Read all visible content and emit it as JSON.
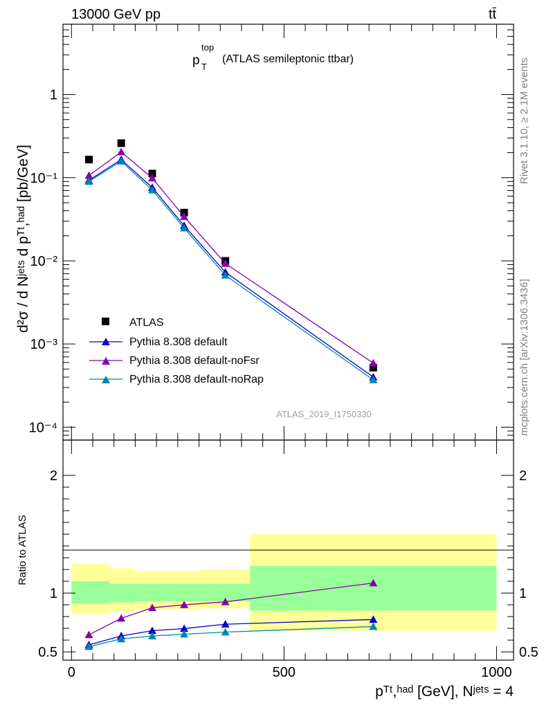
{
  "header": {
    "energy_label": "13000 GeV pp",
    "process_label": "tt̄",
    "title_main": "p",
    "title_sup": "top",
    "title_sub": "T",
    "title_rest": "(ATLAS semileptonic ttbar)",
    "side_label_top": "Rivet 3.1.10, ≥ 2.1M events",
    "side_label_bottom": "mcplots.cern.ch [arXiv:1306.3436]",
    "analysis_id": "ATLAS_2019_I1750330"
  },
  "axes": {
    "ylabel_main": "d²σ / d Nʲᵉᵗˢ d pᵀᵗ,ʰᵃᵈ [pb/GeV]",
    "ylabel_ratio": "Ratio to ATLAS",
    "xlabel": "pᵀᵗ,ʰᵃᵈ [GeV], Nʲᵉᵗˢ = 4",
    "main_ticks": [
      "1",
      "10⁻¹",
      "10⁻²",
      "10⁻³",
      "10⁻⁴"
    ],
    "ratio_ticks": [
      "2",
      "1",
      "0.5"
    ],
    "x_ticks": [
      "0",
      "500",
      "1000"
    ]
  },
  "legend": {
    "atlas": "ATLAS",
    "default": "Pythia 8.308 default",
    "nofsr": "Pythia 8.308 default-noFsr",
    "norap": "Pythia 8.308 default-noRap"
  },
  "chart_data": {
    "type": "scatter",
    "x_scale": "linear",
    "y_scale": "log",
    "xlim": [
      -20,
      1040
    ],
    "ylim": [
      7e-05,
      7
    ],
    "ratio_ylim": [
      0.43,
      2.3
    ],
    "bins": [
      0,
      90,
      150,
      230,
      305,
      420,
      1000
    ],
    "x": [
      41,
      117,
      190,
      265,
      362,
      710
    ],
    "series": [
      {
        "name": "ATLAS",
        "color": "#000000",
        "marker": "square",
        "values": [
          0.165,
          0.26,
          0.112,
          0.038,
          0.01,
          0.00052
        ]
      },
      {
        "name": "Pythia 8.308 default",
        "color": "#0000cc",
        "marker": "triangle",
        "values": [
          0.093,
          0.165,
          0.076,
          0.0265,
          0.0073,
          0.0004
        ],
        "ratio": [
          0.56,
          0.635,
          0.68,
          0.698,
          0.735,
          0.775
        ]
      },
      {
        "name": "Pythia 8.308 default-noFsr",
        "color": "#8800aa",
        "marker": "triangle",
        "values": [
          0.106,
          0.204,
          0.099,
          0.034,
          0.0093,
          0.00059
        ],
        "ratio": [
          0.645,
          0.785,
          0.875,
          0.9,
          0.925,
          1.085
        ]
      },
      {
        "name": "Pythia 8.308 default-noRap",
        "color": "#0088aa",
        "marker": "triangle",
        "values": [
          0.09,
          0.158,
          0.071,
          0.0248,
          0.0067,
          0.00037
        ],
        "ratio": [
          0.545,
          0.61,
          0.635,
          0.65,
          0.668,
          0.715
        ]
      }
    ],
    "uncertainty_bands": {
      "inner": [
        [
          0.91,
          1.1
        ],
        [
          0.92,
          1.08
        ],
        [
          0.93,
          1.08
        ],
        [
          0.93,
          1.08
        ],
        [
          0.93,
          1.08
        ],
        [
          0.85,
          1.23
        ]
      ],
      "outer": [
        [
          0.82,
          1.25
        ],
        [
          0.84,
          1.21
        ],
        [
          0.86,
          1.19
        ],
        [
          0.86,
          1.19
        ],
        [
          0.87,
          1.2
        ],
        [
          0.68,
          1.5
        ]
      ],
      "inner_color": "#99ff99",
      "outer_color": "#ffff99"
    }
  }
}
